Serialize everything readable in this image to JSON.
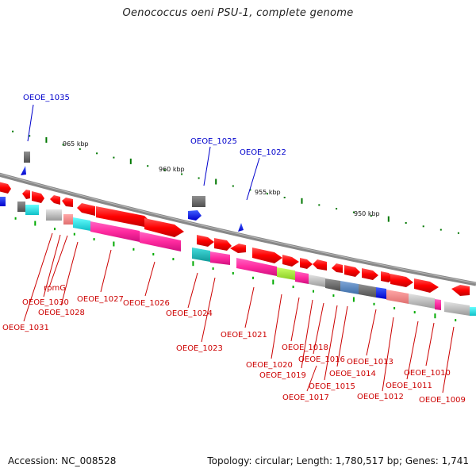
{
  "title": "Oenococcus oeni PSU-1, complete genome",
  "footer": {
    "accession": "Accession: NC_008528",
    "summary": "Topology: circular; Length: 1,780,517 bp; Genes: 1,741"
  },
  "colors": {
    "backbone": "#888888",
    "gene_red": "#ff0000",
    "gene_pink": "#ff33aa",
    "rna_blue": "#0000ff",
    "tick_green": "#007700",
    "label_red": "#cc0000",
    "label_blue": "#0000cc"
  },
  "scale": {
    "tick_labels": [
      "965 kbp",
      "960 kbp",
      "955 kbp",
      "950 kbp"
    ]
  },
  "genes": {
    "blue_labels": [
      "OEOE_1035",
      "OEOE_1025",
      "OEOE_1022"
    ],
    "red_labels": [
      "rpmG",
      "OEOE_1030",
      "OEOE_1028",
      "OEOE_1031",
      "OEOE_1027",
      "OEOE_1026",
      "OEOE_1024",
      "OEOE_1023",
      "OEOE_1021",
      "OEOE_1018",
      "OEOE_1016",
      "OEOE_1020",
      "OEOE_1019",
      "OEOE_1015",
      "OEOE_1017",
      "OEOE_1014",
      "OEOE_1013",
      "OEOE_1012",
      "OEOE_1010",
      "OEOE_1011",
      "OEOE_1009"
    ]
  }
}
